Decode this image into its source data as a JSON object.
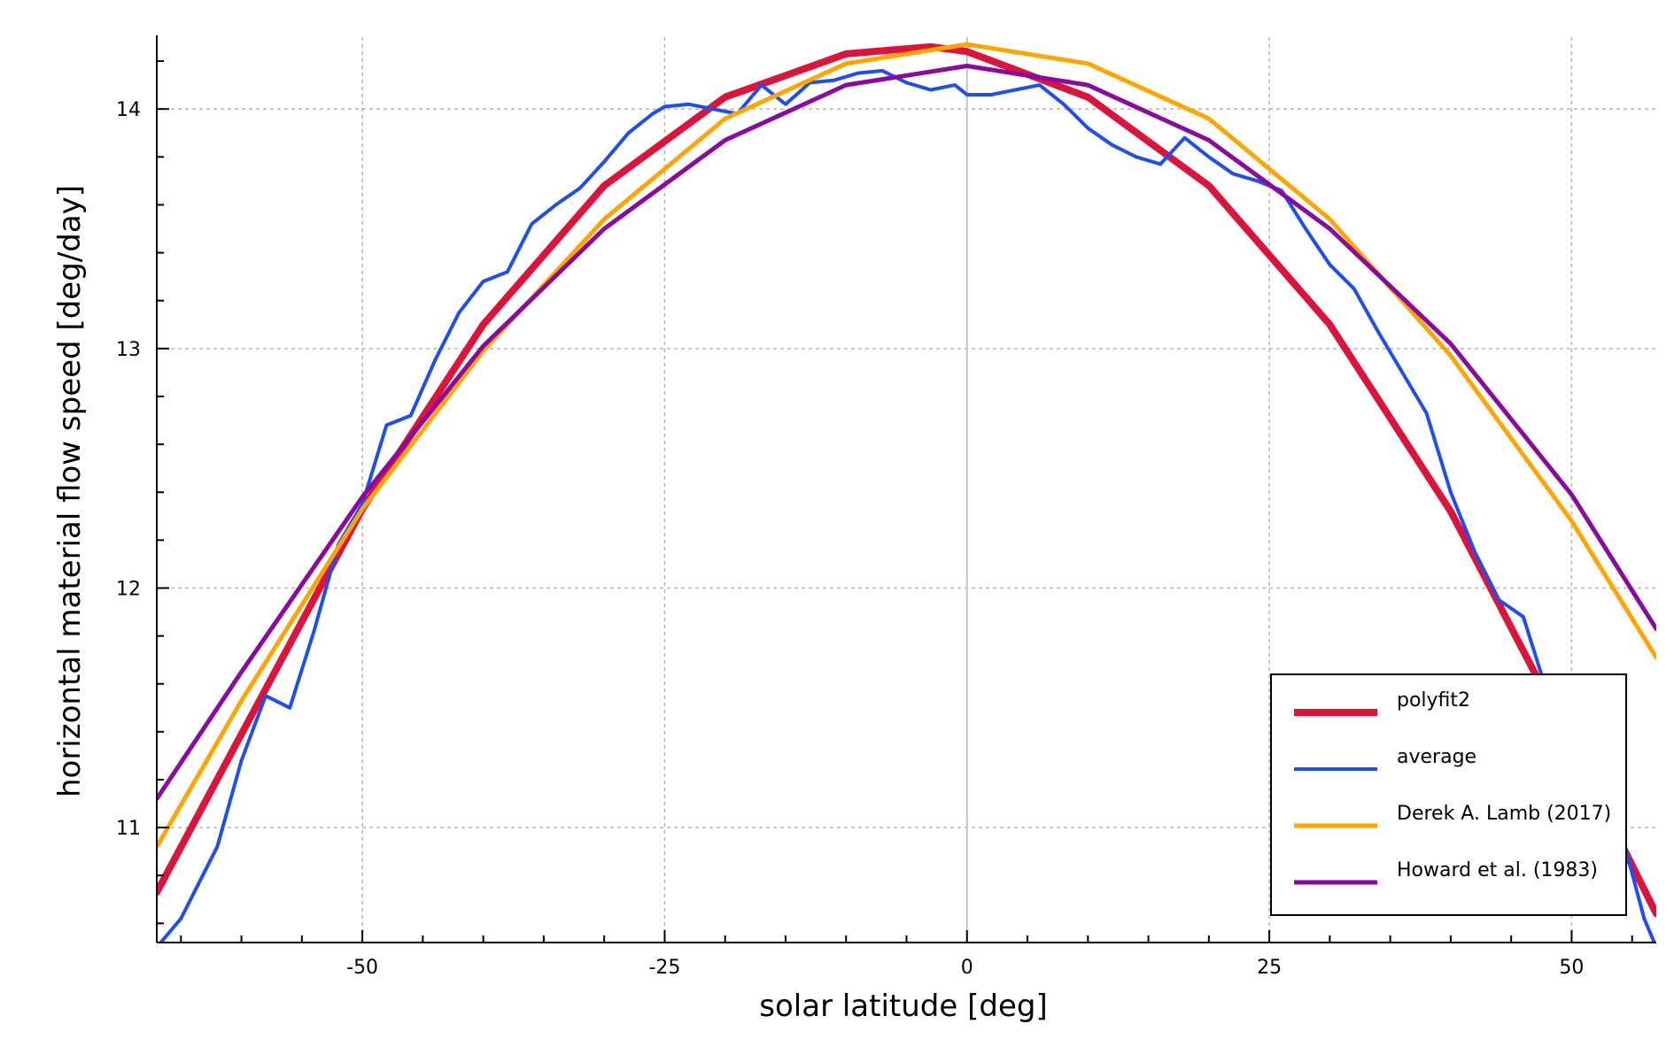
{
  "chart_data": {
    "type": "line",
    "title": "",
    "xlabel": "solar latitude [deg]",
    "ylabel": "horizontal material flow speed [deg/day]",
    "xlim": [
      -67,
      57
    ],
    "ylim": [
      10.52,
      14.3
    ],
    "x_ticks": [
      -50,
      -25,
      0,
      25,
      50
    ],
    "x_tick_labels": [
      "-50",
      "-25",
      "0",
      "25",
      "50"
    ],
    "y_ticks": [
      11,
      12,
      13,
      14
    ],
    "y_tick_labels": [
      "11",
      "12",
      "13",
      "14"
    ],
    "grid": true,
    "zero_line_x": 0,
    "legend_position": "bottom-right",
    "series": [
      {
        "name": "polyfit2",
        "color": "#dc143c",
        "x": [
          -67,
          -60,
          -50,
          -40,
          -30,
          -20,
          -10,
          -3,
          0,
          10,
          20,
          30,
          40,
          50,
          57
        ],
        "values": [
          10.73,
          11.39,
          12.33,
          13.1,
          13.68,
          14.05,
          14.23,
          14.26,
          14.24,
          14.05,
          13.68,
          13.1,
          12.32,
          11.35,
          10.64
        ]
      },
      {
        "name": "average",
        "color": "#1f4ef0",
        "x": [
          -67,
          -65,
          -62,
          -60,
          -58,
          -56,
          -54,
          -52,
          -50,
          -48,
          -46,
          -44,
          -42,
          -40,
          -38,
          -36,
          -34,
          -32,
          -30,
          -28,
          -26,
          -25,
          -23,
          -21,
          -19,
          -17,
          -15,
          -13,
          -11,
          -9,
          -7,
          -5,
          -3,
          -1,
          0,
          2,
          4,
          6,
          8,
          10,
          12,
          14,
          16,
          18,
          20,
          22,
          24,
          26,
          28,
          30,
          32,
          34,
          36,
          38,
          40,
          42,
          44,
          46,
          48,
          50,
          52,
          54,
          56,
          57
        ],
        "values": [
          10.5,
          10.62,
          10.92,
          11.28,
          11.55,
          11.5,
          11.82,
          12.18,
          12.35,
          12.68,
          12.72,
          12.95,
          13.15,
          13.28,
          13.32,
          13.52,
          13.6,
          13.67,
          13.78,
          13.9,
          13.98,
          14.01,
          14.02,
          14.0,
          13.98,
          14.1,
          14.02,
          14.11,
          14.12,
          14.15,
          14.16,
          14.11,
          14.08,
          14.1,
          14.06,
          14.06,
          14.08,
          14.1,
          14.02,
          13.92,
          13.85,
          13.8,
          13.77,
          13.88,
          13.8,
          13.73,
          13.7,
          13.66,
          13.5,
          13.35,
          13.25,
          13.07,
          12.9,
          12.73,
          12.4,
          12.15,
          11.95,
          11.88,
          11.56,
          11.2,
          11.1,
          11.0,
          10.62,
          10.5
        ]
      },
      {
        "name": "Derek A. Lamb (2017)",
        "color": "#ffa500",
        "x": [
          -67,
          -60,
          -50,
          -40,
          -30,
          -20,
          -10,
          0,
          10,
          20,
          30,
          40,
          50,
          57
        ],
        "values": [
          10.92,
          11.53,
          12.33,
          12.99,
          13.54,
          13.96,
          14.19,
          14.27,
          14.19,
          13.96,
          13.54,
          12.97,
          12.28,
          11.71
        ]
      },
      {
        "name": "Howard et al. (1983)",
        "color": "#8b0a9e",
        "x": [
          -67,
          -60,
          -50,
          -40,
          -30,
          -20,
          -10,
          0,
          10,
          20,
          30,
          40,
          50,
          57
        ],
        "values": [
          11.12,
          11.65,
          12.38,
          13.01,
          13.5,
          13.87,
          14.1,
          14.18,
          14.1,
          13.87,
          13.5,
          13.02,
          12.39,
          11.83
        ]
      }
    ]
  }
}
